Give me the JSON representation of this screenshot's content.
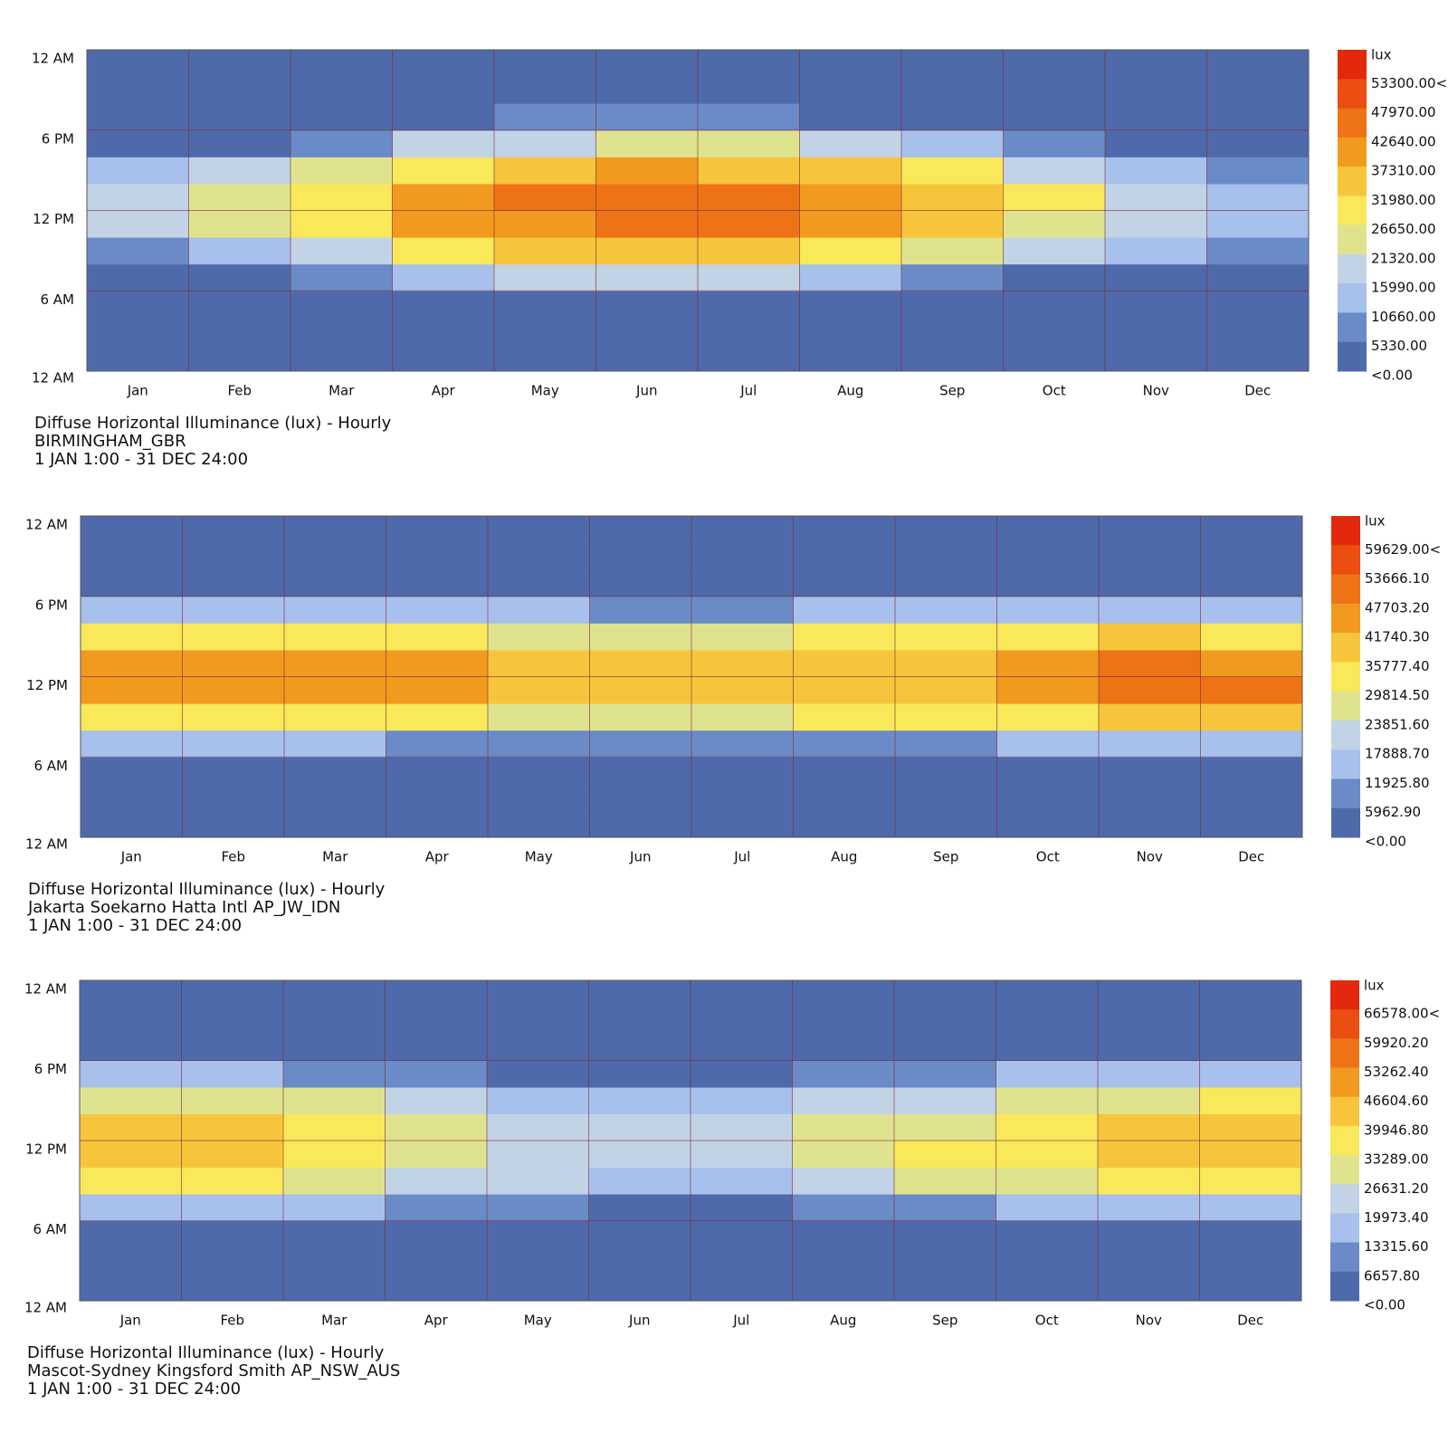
{
  "chart_data": [
    {
      "type": "heatmap",
      "title": "Diffuse Horizontal Illuminance (lux) - Hourly",
      "location": "BIRMINGHAM_GBR",
      "period": "1 JAN 1:00 - 31 DEC 24:00",
      "categories": [
        "Jan",
        "Feb",
        "Mar",
        "Apr",
        "May",
        "Jun",
        "Jul",
        "Aug",
        "Sep",
        "Oct",
        "Nov",
        "Dec"
      ],
      "ybins": [
        0,
        2,
        4,
        6,
        8,
        10,
        12,
        14,
        16,
        18,
        20,
        22,
        24
      ],
      "ylim": [
        0,
        24
      ],
      "yticks": [
        {
          "value": 0,
          "label": "12 AM"
        },
        {
          "value": 6,
          "label": "6 AM"
        },
        {
          "value": 12,
          "label": "12 PM"
        },
        {
          "value": 18,
          "label": "6 PM"
        },
        {
          "value": 24,
          "label": "12 AM"
        }
      ],
      "values": [
        [
          0,
          0,
          0,
          500,
          9000,
          16000,
          17000,
          11000,
          1500,
          0,
          0,
          0
        ],
        [
          0,
          0,
          0,
          2000,
          13000,
          22000,
          23000,
          16000,
          4000,
          0,
          0,
          0
        ],
        [
          0,
          0,
          0,
          6000,
          20000,
          30000,
          31000,
          24000,
          9000,
          500,
          0,
          0
        ],
        [
          0,
          0,
          1000,
          12000,
          27000,
          38000,
          38000,
          31000,
          16000,
          3000,
          0,
          0
        ],
        [
          0,
          0,
          3000,
          16000,
          32000,
          42000,
          44000,
          36000,
          21000,
          6000,
          0,
          0
        ],
        [
          0,
          0,
          4000,
          18000,
          33000,
          45000,
          46000,
          38000,
          23000,
          8000,
          500,
          0
        ],
        [
          0,
          0,
          3500,
          17000,
          33000,
          44000,
          45000,
          37000,
          22000,
          7000,
          0,
          0
        ],
        [
          0,
          0,
          1500,
          14000,
          30000,
          40000,
          41000,
          34000,
          18000,
          4000,
          0,
          0
        ],
        [
          0,
          0,
          200,
          9000,
          25000,
          36000,
          36000,
          28000,
          12000,
          1000,
          0,
          0
        ],
        [
          0,
          0,
          0,
          4000,
          17000,
          26000,
          27000,
          19000,
          6000,
          0,
          0,
          0
        ],
        [
          0,
          0,
          0,
          1000,
          11000,
          18000,
          18000,
          11000,
          2000,
          0,
          0,
          0
        ],
        [
          0,
          0,
          0,
          200,
          7000,
          14000,
          15000,
          8000,
          800,
          0,
          0,
          0
        ]
      ],
      "legend": {
        "title": "lux",
        "colors": [
          "#e3280e",
          "#ec4d10",
          "#ee7316",
          "#f29a1f",
          "#f7c53b",
          "#f8e85a",
          "#e0e38e",
          "#c2d3e6",
          "#a7c0ec",
          "#6a8bc8",
          "#4f6aab"
        ],
        "ticks": [
          {
            "value": 53300,
            "label": "53300.00<"
          },
          {
            "value": 47970,
            "label": "47970.00"
          },
          {
            "value": 42640,
            "label": "42640.00"
          },
          {
            "value": 37310,
            "label": "37310.00"
          },
          {
            "value": 31980,
            "label": "31980.00"
          },
          {
            "value": 26650,
            "label": "26650.00"
          },
          {
            "value": 21320,
            "label": "21320.00"
          },
          {
            "value": 15990,
            "label": "15990.00"
          },
          {
            "value": 10660,
            "label": "10660.00"
          },
          {
            "value": 5330,
            "label": "5330.00"
          },
          {
            "value": 0,
            "label": "<0.00"
          }
        ]
      }
    },
    {
      "type": "heatmap",
      "title": "Diffuse Horizontal Illuminance (lux) - Hourly",
      "location": "Jakarta Soekarno Hatta Intl AP_JW_IDN",
      "period": "1 JAN 1:00 - 31 DEC 24:00",
      "categories": [
        "Jan",
        "Feb",
        "Mar",
        "Apr",
        "May",
        "Jun",
        "Jul",
        "Aug",
        "Sep",
        "Oct",
        "Nov",
        "Dec"
      ],
      "ybins": [
        0,
        2,
        4,
        6,
        8,
        10,
        12,
        14,
        16,
        18,
        20,
        22,
        24
      ],
      "ylim": [
        0,
        24
      ],
      "yticks": [
        {
          "value": 0,
          "label": "12 AM"
        },
        {
          "value": 6,
          "label": "6 AM"
        },
        {
          "value": 12,
          "label": "12 PM"
        },
        {
          "value": 18,
          "label": "6 PM"
        },
        {
          "value": 24,
          "label": "12 AM"
        }
      ],
      "values": [
        [
          0,
          0,
          0,
          12000,
          33000,
          46000,
          45000,
          34000,
          14000,
          0,
          0,
          0
        ],
        [
          0,
          0,
          0,
          12000,
          34000,
          47000,
          46000,
          35000,
          14000,
          0,
          0,
          0
        ],
        [
          0,
          0,
          0,
          12000,
          34000,
          46000,
          45000,
          34000,
          14000,
          0,
          0,
          0
        ],
        [
          0,
          0,
          0,
          11000,
          32000,
          43000,
          42000,
          32000,
          13000,
          0,
          0,
          0
        ],
        [
          0,
          0,
          0,
          10000,
          28000,
          38000,
          37000,
          28000,
          12000,
          0,
          0,
          0
        ],
        [
          0,
          0,
          0,
          9000,
          27000,
          36000,
          36000,
          28000,
          11000,
          0,
          0,
          0
        ],
        [
          0,
          0,
          0,
          9000,
          28000,
          37000,
          37000,
          28000,
          11000,
          0,
          0,
          0
        ],
        [
          0,
          0,
          0,
          10000,
          30000,
          39000,
          39000,
          30000,
          12000,
          0,
          0,
          0
        ],
        [
          0,
          0,
          0,
          11000,
          31000,
          41000,
          41000,
          31000,
          13000,
          0,
          0,
          0
        ],
        [
          0,
          0,
          0,
          13000,
          35000,
          46000,
          46000,
          35000,
          15000,
          0,
          0,
          0
        ],
        [
          0,
          0,
          0,
          14000,
          37000,
          49000,
          48000,
          36000,
          15000,
          0,
          0,
          0
        ],
        [
          0,
          0,
          0,
          14000,
          36000,
          48000,
          47000,
          35000,
          14000,
          0,
          0,
          0
        ]
      ],
      "legend": {
        "title": "lux",
        "colors": [
          "#e3280e",
          "#ec4d10",
          "#ee7316",
          "#f29a1f",
          "#f7c53b",
          "#f8e85a",
          "#e0e38e",
          "#c2d3e6",
          "#a7c0ec",
          "#6a8bc8",
          "#4f6aab"
        ],
        "ticks": [
          {
            "value": 59629,
            "label": "59629.00<"
          },
          {
            "value": 53666.1,
            "label": "53666.10"
          },
          {
            "value": 47703.2,
            "label": "47703.20"
          },
          {
            "value": 41740.3,
            "label": "41740.30"
          },
          {
            "value": 35777.4,
            "label": "35777.40"
          },
          {
            "value": 29814.5,
            "label": "29814.50"
          },
          {
            "value": 23851.6,
            "label": "23851.60"
          },
          {
            "value": 17888.7,
            "label": "17888.70"
          },
          {
            "value": 11925.8,
            "label": "11925.80"
          },
          {
            "value": 5962.9,
            "label": "5962.90"
          },
          {
            "value": 0,
            "label": "<0.00"
          }
        ]
      }
    },
    {
      "type": "heatmap",
      "title": "Diffuse Horizontal Illuminance (lux) - Hourly",
      "location": "Mascot-Sydney Kingsford Smith AP_NSW_AUS",
      "period": "1 JAN 1:00 - 31 DEC 24:00",
      "categories": [
        "Jan",
        "Feb",
        "Mar",
        "Apr",
        "May",
        "Jun",
        "Jul",
        "Aug",
        "Sep",
        "Oct",
        "Nov",
        "Dec"
      ],
      "ybins": [
        0,
        2,
        4,
        6,
        8,
        10,
        12,
        14,
        16,
        18,
        20,
        22,
        24
      ],
      "ylim": [
        0,
        24
      ],
      "yticks": [
        {
          "value": 0,
          "label": "12 AM"
        },
        {
          "value": 6,
          "label": "6 AM"
        },
        {
          "value": 12,
          "label": "12 PM"
        },
        {
          "value": 18,
          "label": "6 PM"
        },
        {
          "value": 24,
          "label": "12 AM"
        }
      ],
      "values": [
        [
          0,
          0,
          2000,
          18000,
          35000,
          43000,
          42000,
          33000,
          18000,
          2000,
          0,
          0
        ],
        [
          0,
          0,
          1000,
          16000,
          34000,
          42000,
          41000,
          32000,
          16000,
          1000,
          0,
          0
        ],
        [
          0,
          0,
          500,
          14000,
          30000,
          37000,
          36000,
          28000,
          13000,
          500,
          0,
          0
        ],
        [
          0,
          0,
          0,
          10000,
          24000,
          30000,
          29000,
          22000,
          9000,
          0,
          0,
          0
        ],
        [
          0,
          0,
          0,
          7000,
          20000,
          25000,
          24000,
          18000,
          6000,
          0,
          0,
          0
        ],
        [
          0,
          0,
          0,
          5000,
          18000,
          23000,
          22000,
          16000,
          5000,
          0,
          0,
          0
        ],
        [
          0,
          0,
          0,
          6000,
          19000,
          25000,
          24000,
          17000,
          5000,
          0,
          0,
          0
        ],
        [
          0,
          0,
          0,
          8000,
          23000,
          30000,
          29000,
          21000,
          7000,
          0,
          0,
          0
        ],
        [
          0,
          0,
          0,
          11000,
          27000,
          34000,
          33000,
          25000,
          10000,
          0,
          0,
          0
        ],
        [
          0,
          0,
          1000,
          15000,
          31000,
          39000,
          38000,
          29000,
          14000,
          500,
          0,
          0
        ],
        [
          0,
          0,
          2500,
          18000,
          35000,
          44000,
          43000,
          33000,
          17000,
          2000,
          0,
          0
        ],
        [
          0,
          0,
          3000,
          19000,
          36000,
          45000,
          44000,
          34000,
          18000,
          2500,
          0,
          0
        ]
      ],
      "legend": {
        "title": "lux",
        "colors": [
          "#e3280e",
          "#ec4d10",
          "#ee7316",
          "#f29a1f",
          "#f7c53b",
          "#f8e85a",
          "#e0e38e",
          "#c2d3e6",
          "#a7c0ec",
          "#6a8bc8",
          "#4f6aab"
        ],
        "ticks": [
          {
            "value": 66578,
            "label": "66578.00<"
          },
          {
            "value": 59920.2,
            "label": "59920.20"
          },
          {
            "value": 53262.4,
            "label": "53262.40"
          },
          {
            "value": 46604.6,
            "label": "46604.60"
          },
          {
            "value": 39946.8,
            "label": "39946.80"
          },
          {
            "value": 33289,
            "label": "33289.00"
          },
          {
            "value": 26631.2,
            "label": "26631.20"
          },
          {
            "value": 19973.4,
            "label": "19973.40"
          },
          {
            "value": 13315.6,
            "label": "13315.60"
          },
          {
            "value": 6657.8,
            "label": "6657.80"
          },
          {
            "value": 0,
            "label": "<0.00"
          }
        ]
      }
    }
  ]
}
